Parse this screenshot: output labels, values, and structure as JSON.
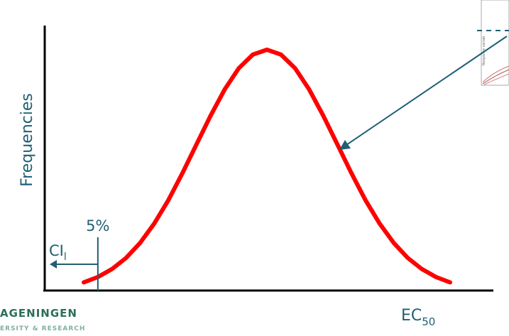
{
  "slide": {
    "logo_line1": "AGENINGEN",
    "logo_line2": "ERSITY & RESEARCH",
    "inset_ylabel": "Response variab"
  },
  "chart_data": {
    "type": "line",
    "title": "",
    "xlabel": {
      "main": "EC",
      "sub": "50"
    },
    "ylabel": "Frequencies",
    "series": [
      {
        "color": "#ff0000",
        "shape": "normal distribution curve",
        "mean": 0,
        "sd": 1,
        "x": [
          -2.6,
          -2.4,
          -2.2,
          -2.0,
          -1.8,
          -1.6,
          -1.4,
          -1.2,
          -1.0,
          -0.8,
          -0.6,
          -0.4,
          -0.2,
          0.0,
          0.2,
          0.4,
          0.6,
          0.8,
          1.0,
          1.2,
          1.4,
          1.6,
          1.8,
          2.0,
          2.2,
          2.4,
          2.6
        ],
        "y": [
          0.034,
          0.056,
          0.089,
          0.135,
          0.198,
          0.278,
          0.375,
          0.487,
          0.607,
          0.726,
          0.835,
          0.923,
          0.98,
          1.0,
          0.98,
          0.923,
          0.835,
          0.726,
          0.607,
          0.487,
          0.375,
          0.278,
          0.198,
          0.135,
          0.089,
          0.056,
          0.034
        ]
      }
    ],
    "xlim": [
      -2.6,
      2.6
    ],
    "ylim": [
      0,
      1.0
    ],
    "grid": false,
    "annotations": {
      "cutoff_label": "5%",
      "cutoff_x": -2.4,
      "ci_main": "CI",
      "ci_sub": "l"
    },
    "colors": {
      "curve": "#ff0000",
      "axis": "#000000",
      "annotation": "#1f5f73",
      "text": "#1f5f73"
    }
  }
}
